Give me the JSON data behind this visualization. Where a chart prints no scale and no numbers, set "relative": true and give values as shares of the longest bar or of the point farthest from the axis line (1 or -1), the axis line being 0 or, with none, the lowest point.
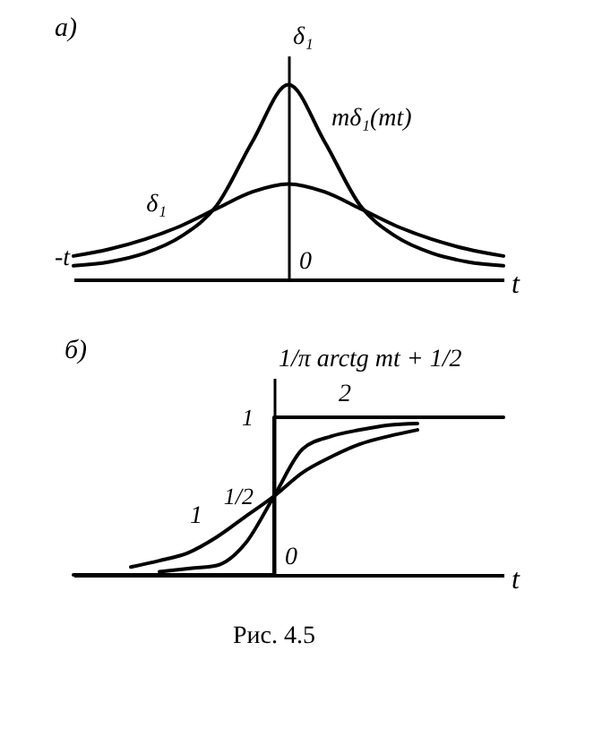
{
  "chart_data": [
    {
      "type": "line",
      "title": "а)",
      "relative": true,
      "xlabel": "t",
      "ylabel": "δ₁",
      "annotations": [
        "0",
        "-t"
      ],
      "categories": [
        null,
        null,
        null,
        null,
        null,
        null,
        null,
        null,
        null,
        null,
        null,
        null,
        null
      ],
      "series": [
        {
          "name": "δ₁",
          "color": "#000000",
          "values": [
            0.12,
            0.155,
            0.206,
            0.275,
            0.364,
            0.45,
            0.49,
            0.45,
            0.364,
            0.275,
            0.206,
            0.155,
            0.12
          ]
        },
        {
          "name": "mδ₁(mt)",
          "color": "#000000",
          "values": [
            0.07,
            0.09,
            0.135,
            0.22,
            0.38,
            0.71,
            1,
            0.71,
            0.38,
            0.22,
            0.135,
            0.09,
            0.07
          ]
        }
      ]
    },
    {
      "type": "line",
      "title": "б)",
      "xlabel": "t",
      "ylabel": "1/π arctg mt + 1/2",
      "annotations": [
        "0",
        "Рис. 4.5"
      ],
      "categories": [
        null,
        null,
        null,
        null,
        null,
        null,
        null,
        null,
        null,
        null,
        null,
        null,
        null,
        null,
        null,
        null
      ],
      "ylim": [
        0,
        1.25
      ],
      "yticks": [
        {
          "value": 0.5,
          "label": "1/2"
        },
        1
      ],
      "series": [
        {
          "type": "step",
          "color": "#000000",
          "values": [
            0,
            0,
            0,
            0,
            0,
            0,
            0,
            1,
            1,
            1,
            1,
            1,
            1,
            1,
            1,
            1
          ]
        },
        {
          "name": "1",
          "color": "#000000",
          "values": [
            null,
            null,
            0.05,
            0.09,
            0.14,
            0.24,
            0.37,
            0.5,
            0.65,
            0.75,
            0.83,
            0.88,
            0.92,
            null,
            null,
            null
          ]
        },
        {
          "name": "2",
          "color": "#000000",
          "values": [
            null,
            null,
            null,
            0.02,
            0.04,
            0.06,
            0.2,
            0.5,
            0.8,
            0.88,
            0.92,
            0.95,
            0.96,
            null,
            null,
            null
          ]
        }
      ]
    }
  ]
}
